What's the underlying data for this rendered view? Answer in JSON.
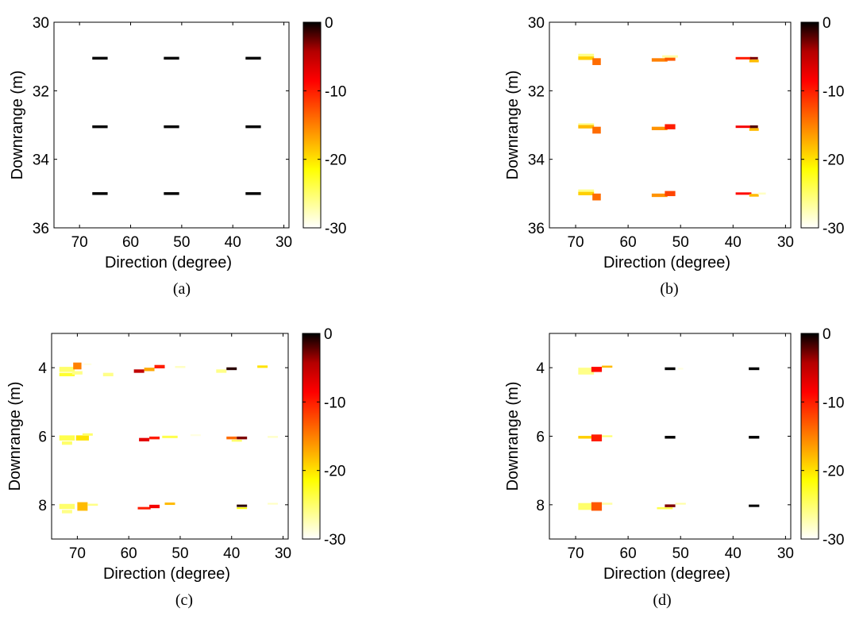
{
  "colormap": {
    "name": "hot",
    "stops": [
      "#ffffff",
      "#ffff80",
      "#ffff00",
      "#ffaa00",
      "#ff5500",
      "#ff0000",
      "#b40000",
      "#000000"
    ]
  },
  "chart_data": [
    {
      "type": "heatmap",
      "caption": "(a)",
      "xlabel": "Direction (degree)",
      "ylabel": "Downrange (m)",
      "xlim": [
        75,
        29
      ],
      "ylim": [
        30,
        36
      ],
      "xticks": [
        70,
        60,
        50,
        40,
        30
      ],
      "yticks": [
        30,
        32,
        34,
        36
      ],
      "colorbar": {
        "min": -30,
        "max": 0,
        "ticks": [
          0,
          -10,
          -20,
          -30
        ]
      },
      "cells": [
        {
          "x": 66,
          "y": 31.05,
          "w": 3,
          "h": 0.08,
          "v": 0
        },
        {
          "x": 52,
          "y": 31.05,
          "w": 3,
          "h": 0.08,
          "v": 0
        },
        {
          "x": 36,
          "y": 31.05,
          "w": 3,
          "h": 0.08,
          "v": 0
        },
        {
          "x": 66,
          "y": 33.05,
          "w": 3,
          "h": 0.08,
          "v": 0
        },
        {
          "x": 52,
          "y": 33.05,
          "w": 3,
          "h": 0.08,
          "v": 0
        },
        {
          "x": 36,
          "y": 33.05,
          "w": 3,
          "h": 0.08,
          "v": 0
        },
        {
          "x": 66,
          "y": 35.0,
          "w": 3,
          "h": 0.08,
          "v": 0
        },
        {
          "x": 52,
          "y": 35.0,
          "w": 3,
          "h": 0.08,
          "v": 0
        },
        {
          "x": 36,
          "y": 35.0,
          "w": 3,
          "h": 0.08,
          "v": 0
        }
      ]
    },
    {
      "type": "heatmap",
      "caption": "(b)",
      "xlabel": "Direction (degree)",
      "ylabel": "Downrange (m)",
      "xlim": [
        75,
        29
      ],
      "ylim": [
        30,
        36
      ],
      "xticks": [
        70,
        60,
        50,
        40,
        30
      ],
      "yticks": [
        30,
        32,
        34,
        36
      ],
      "colorbar": {
        "min": -30,
        "max": 0,
        "ticks": [
          0,
          -10,
          -20,
          -30
        ]
      },
      "cells": [
        {
          "x": 68,
          "y": 30.97,
          "w": 3,
          "h": 0.1,
          "v": -26
        },
        {
          "x": 68,
          "y": 31.05,
          "w": 3,
          "h": 0.1,
          "v": -19
        },
        {
          "x": 66,
          "y": 31.15,
          "w": 1.6,
          "h": 0.2,
          "v": -14
        },
        {
          "x": 54,
          "y": 31.1,
          "w": 3,
          "h": 0.1,
          "v": -15
        },
        {
          "x": 52,
          "y": 31.05,
          "w": 2,
          "h": 0.15,
          "v": -13
        },
        {
          "x": 52,
          "y": 31.0,
          "w": 3,
          "h": 0.07,
          "v": -27
        },
        {
          "x": 38,
          "y": 31.05,
          "w": 3,
          "h": 0.07,
          "v": -10
        },
        {
          "x": 36,
          "y": 31.05,
          "w": 1.5,
          "h": 0.07,
          "v": -3
        },
        {
          "x": 36,
          "y": 31.13,
          "w": 1.8,
          "h": 0.08,
          "v": -18
        },
        {
          "x": 68,
          "y": 33.0,
          "w": 3,
          "h": 0.1,
          "v": -26
        },
        {
          "x": 68,
          "y": 33.05,
          "w": 3,
          "h": 0.1,
          "v": -18
        },
        {
          "x": 66,
          "y": 33.15,
          "w": 1.6,
          "h": 0.2,
          "v": -14
        },
        {
          "x": 54,
          "y": 33.1,
          "w": 3,
          "h": 0.1,
          "v": -16
        },
        {
          "x": 52,
          "y": 33.05,
          "w": 2,
          "h": 0.15,
          "v": -10
        },
        {
          "x": 38,
          "y": 33.05,
          "w": 3,
          "h": 0.07,
          "v": -8
        },
        {
          "x": 36,
          "y": 33.05,
          "w": 1.5,
          "h": 0.08,
          "v": -2
        },
        {
          "x": 36,
          "y": 33.13,
          "w": 1.8,
          "h": 0.08,
          "v": -18
        },
        {
          "x": 68,
          "y": 34.93,
          "w": 3,
          "h": 0.1,
          "v": -26
        },
        {
          "x": 68,
          "y": 35.0,
          "w": 3,
          "h": 0.1,
          "v": -19
        },
        {
          "x": 66,
          "y": 35.1,
          "w": 1.6,
          "h": 0.2,
          "v": -14
        },
        {
          "x": 54,
          "y": 35.05,
          "w": 3,
          "h": 0.1,
          "v": -16
        },
        {
          "x": 52,
          "y": 35.0,
          "w": 2,
          "h": 0.15,
          "v": -12
        },
        {
          "x": 38,
          "y": 35.0,
          "w": 3,
          "h": 0.07,
          "v": -9
        },
        {
          "x": 36,
          "y": 35.05,
          "w": 1.8,
          "h": 0.08,
          "v": -18
        },
        {
          "x": 34.5,
          "y": 35.0,
          "w": 1.5,
          "h": 0.06,
          "v": -28
        }
      ]
    },
    {
      "type": "heatmap",
      "caption": "(c)",
      "xlabel": "Direction (degree)",
      "ylabel": "Downrange (m)",
      "xlim": [
        75,
        29
      ],
      "ylim": [
        3,
        9
      ],
      "xticks": [
        70,
        60,
        50,
        40,
        30
      ],
      "yticks": [
        4,
        6,
        8
      ],
      "colorbar": {
        "min": -30,
        "max": 0,
        "ticks": [
          0,
          -10,
          -20,
          -30
        ]
      },
      "cells": [
        {
          "x": 72,
          "y": 4.05,
          "w": 3,
          "h": 0.15,
          "v": -25
        },
        {
          "x": 72,
          "y": 4.2,
          "w": 3,
          "h": 0.1,
          "v": -23
        },
        {
          "x": 70,
          "y": 3.95,
          "w": 1.6,
          "h": 0.2,
          "v": -15
        },
        {
          "x": 70,
          "y": 4.15,
          "w": 2,
          "h": 0.1,
          "v": -26
        },
        {
          "x": 68,
          "y": 3.9,
          "w": 1.5,
          "h": 0.05,
          "v": -29
        },
        {
          "x": 64,
          "y": 4.2,
          "w": 2,
          "h": 0.1,
          "v": -26
        },
        {
          "x": 58,
          "y": 4.1,
          "w": 2,
          "h": 0.1,
          "v": -5
        },
        {
          "x": 56,
          "y": 4.05,
          "w": 2,
          "h": 0.1,
          "v": -17
        },
        {
          "x": 54,
          "y": 3.97,
          "w": 2,
          "h": 0.1,
          "v": -10
        },
        {
          "x": 50,
          "y": 3.98,
          "w": 2,
          "h": 0.06,
          "v": -28
        },
        {
          "x": 42,
          "y": 4.1,
          "w": 2,
          "h": 0.1,
          "v": -26
        },
        {
          "x": 40,
          "y": 4.03,
          "w": 2,
          "h": 0.08,
          "v": -1
        },
        {
          "x": 34,
          "y": 3.97,
          "w": 2,
          "h": 0.07,
          "v": -20
        },
        {
          "x": 72,
          "y": 6.05,
          "w": 3,
          "h": 0.15,
          "v": -24
        },
        {
          "x": 72,
          "y": 6.2,
          "w": 2,
          "h": 0.1,
          "v": -25
        },
        {
          "x": 69,
          "y": 6.05,
          "w": 2.5,
          "h": 0.15,
          "v": -20
        },
        {
          "x": 68,
          "y": 5.95,
          "w": 2,
          "h": 0.07,
          "v": -25
        },
        {
          "x": 57,
          "y": 6.1,
          "w": 2,
          "h": 0.1,
          "v": -7
        },
        {
          "x": 55,
          "y": 6.05,
          "w": 2,
          "h": 0.08,
          "v": -10
        },
        {
          "x": 52,
          "y": 6.02,
          "w": 3,
          "h": 0.07,
          "v": -24
        },
        {
          "x": 40,
          "y": 6.05,
          "w": 2,
          "h": 0.08,
          "v": -14
        },
        {
          "x": 38,
          "y": 6.05,
          "w": 2,
          "h": 0.08,
          "v": -3
        },
        {
          "x": 39,
          "y": 6.13,
          "w": 2,
          "h": 0.06,
          "v": -25
        },
        {
          "x": 32,
          "y": 6.02,
          "w": 2,
          "h": 0.05,
          "v": -28
        },
        {
          "x": 47,
          "y": 5.97,
          "w": 2,
          "h": 0.05,
          "v": -29
        },
        {
          "x": 72,
          "y": 8.05,
          "w": 3,
          "h": 0.15,
          "v": -25
        },
        {
          "x": 72,
          "y": 8.2,
          "w": 2,
          "h": 0.1,
          "v": -26
        },
        {
          "x": 69,
          "y": 8.05,
          "w": 2,
          "h": 0.25,
          "v": -18
        },
        {
          "x": 67,
          "y": 8.0,
          "w": 2,
          "h": 0.06,
          "v": -26
        },
        {
          "x": 57,
          "y": 8.1,
          "w": 2.5,
          "h": 0.07,
          "v": -10
        },
        {
          "x": 55,
          "y": 8.05,
          "w": 2,
          "h": 0.1,
          "v": -8
        },
        {
          "x": 52,
          "y": 7.97,
          "w": 2,
          "h": 0.07,
          "v": -18
        },
        {
          "x": 38,
          "y": 8.03,
          "w": 2,
          "h": 0.07,
          "v": -1
        },
        {
          "x": 38,
          "y": 8.1,
          "w": 2,
          "h": 0.05,
          "v": -22
        },
        {
          "x": 32,
          "y": 7.97,
          "w": 2,
          "h": 0.05,
          "v": -28
        }
      ]
    },
    {
      "type": "heatmap",
      "caption": "(d)",
      "xlabel": "Direction (degree)",
      "ylabel": "Downrange (m)",
      "xlim": [
        75,
        29
      ],
      "ylim": [
        3,
        9
      ],
      "xticks": [
        70,
        60,
        50,
        40,
        30
      ],
      "yticks": [
        4,
        6,
        8
      ],
      "colorbar": {
        "min": -30,
        "max": 0,
        "ticks": [
          0,
          -10,
          -20,
          -30
        ]
      },
      "cells": [
        {
          "x": 68,
          "y": 4.1,
          "w": 3,
          "h": 0.2,
          "v": -26
        },
        {
          "x": 66,
          "y": 4.05,
          "w": 2,
          "h": 0.15,
          "v": -9
        },
        {
          "x": 64,
          "y": 3.97,
          "w": 2,
          "h": 0.06,
          "v": -18
        },
        {
          "x": 52,
          "y": 4.03,
          "w": 2,
          "h": 0.08,
          "v": 0
        },
        {
          "x": 50,
          "y": 4.03,
          "w": 1,
          "h": 0.05,
          "v": -29
        },
        {
          "x": 36,
          "y": 4.03,
          "w": 2,
          "h": 0.08,
          "v": 0
        },
        {
          "x": 68,
          "y": 6.03,
          "w": 3,
          "h": 0.08,
          "v": -19
        },
        {
          "x": 66,
          "y": 6.05,
          "w": 2,
          "h": 0.2,
          "v": -10
        },
        {
          "x": 64,
          "y": 6.0,
          "w": 2,
          "h": 0.05,
          "v": -25
        },
        {
          "x": 52,
          "y": 6.03,
          "w": 2,
          "h": 0.08,
          "v": 0
        },
        {
          "x": 36,
          "y": 6.03,
          "w": 2,
          "h": 0.08,
          "v": 0
        },
        {
          "x": 68,
          "y": 8.05,
          "w": 3,
          "h": 0.2,
          "v": -25
        },
        {
          "x": 66,
          "y": 8.05,
          "w": 2,
          "h": 0.25,
          "v": -13
        },
        {
          "x": 64,
          "y": 7.97,
          "w": 2,
          "h": 0.06,
          "v": -27
        },
        {
          "x": 53,
          "y": 8.1,
          "w": 3,
          "h": 0.06,
          "v": -24
        },
        {
          "x": 52,
          "y": 8.03,
          "w": 2,
          "h": 0.08,
          "v": -3
        },
        {
          "x": 50,
          "y": 7.97,
          "w": 2,
          "h": 0.05,
          "v": -27
        },
        {
          "x": 36,
          "y": 8.03,
          "w": 2,
          "h": 0.07,
          "v": 0
        }
      ]
    }
  ]
}
